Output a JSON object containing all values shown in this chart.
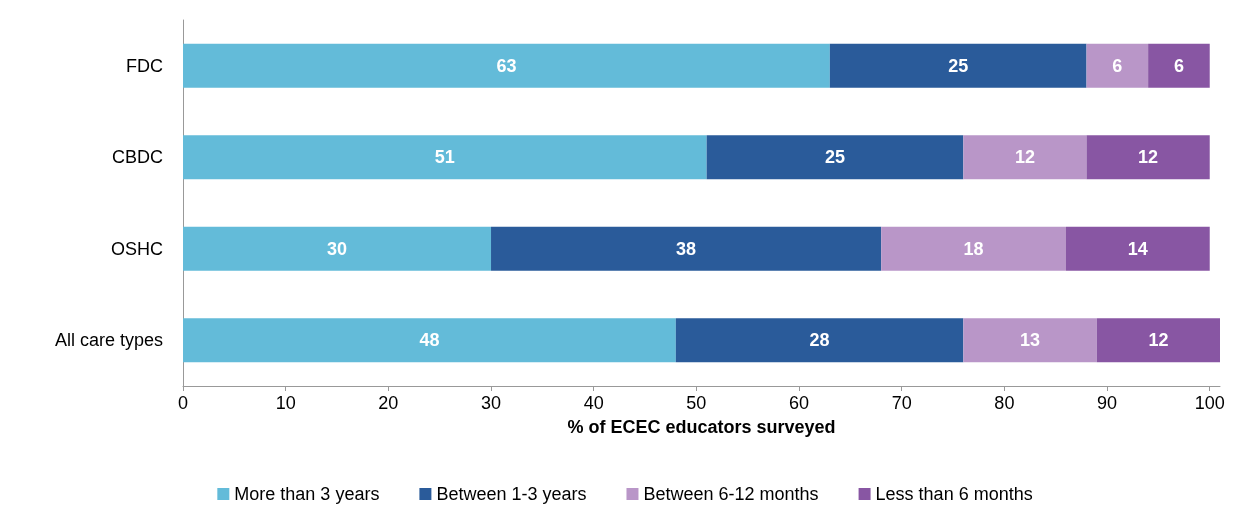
{
  "chart_data": {
    "type": "bar",
    "orientation": "horizontal",
    "stacked": true,
    "data_labels": true,
    "legend": "bottom",
    "grid": false,
    "xlabel": "% of ECEC educators surveyed",
    "categories": [
      "FDC",
      "CBDC",
      "OSHC",
      "All care types"
    ],
    "xlim": [
      0,
      101
    ],
    "xticks": [
      0,
      10,
      20,
      30,
      40,
      50,
      60,
      70,
      80,
      90,
      100
    ],
    "series": [
      {
        "name": "More than 3 years",
        "color": "#63bbd9",
        "values": [
          63,
          51,
          30,
          48
        ]
      },
      {
        "name": "Between 1-3 years",
        "color": "#2a5b9a",
        "values": [
          25,
          25,
          38,
          28
        ]
      },
      {
        "name": "Between 6-12 months",
        "color": "#b996c8",
        "values": [
          6,
          12,
          18,
          13
        ]
      },
      {
        "name": "Less than 6 months",
        "color": "#8856a3",
        "values": [
          6,
          12,
          14,
          12
        ]
      }
    ]
  }
}
